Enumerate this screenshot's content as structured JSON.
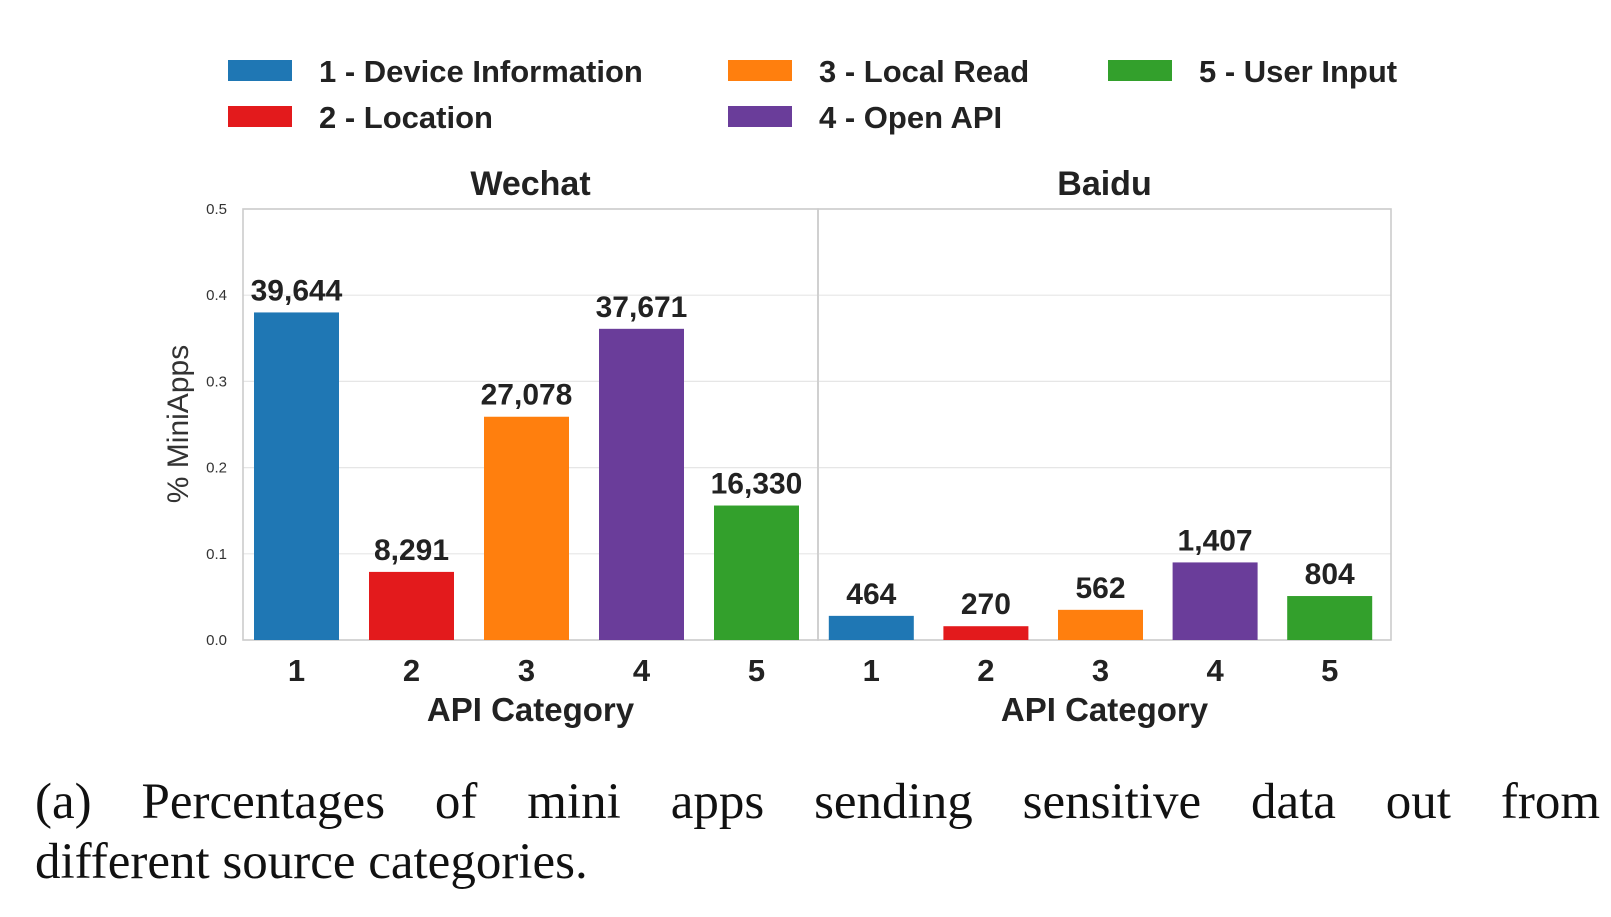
{
  "chart_data": {
    "type": "bar",
    "ylabel": "% MiniApps",
    "ylim": [
      0,
      0.5
    ],
    "yticks": [
      "0.0",
      "0.1",
      "0.2",
      "0.3",
      "0.4",
      "0.5"
    ],
    "grid": true,
    "legend_position": "top-center",
    "legend": [
      {
        "label": "1 - Device Information",
        "color": "#1f77b4"
      },
      {
        "label": "2 - Location",
        "color": "#e31a1c"
      },
      {
        "label": "3 - Local Read",
        "color": "#ff7f0e"
      },
      {
        "label": "4 - Open API",
        "color": "#6a3d9a"
      },
      {
        "label": "5 - User Input",
        "color": "#33a02c"
      }
    ],
    "categories": [
      "1",
      "2",
      "3",
      "4",
      "5"
    ],
    "xlabel": "API Category",
    "panels": [
      {
        "title": "Wechat",
        "values": [
          0.38,
          0.079,
          0.259,
          0.361,
          0.156
        ],
        "labels": [
          "39,644",
          "8,291",
          "27,078",
          "37,671",
          "16,330"
        ]
      },
      {
        "title": "Baidu",
        "values": [
          0.028,
          0.016,
          0.035,
          0.09,
          0.051
        ],
        "labels": [
          "464",
          "270",
          "562",
          "1,407",
          "804"
        ]
      }
    ]
  },
  "caption": {
    "line1": "(a) Percentages of mini apps sending sensitive data out from",
    "line2": "different source categories."
  }
}
